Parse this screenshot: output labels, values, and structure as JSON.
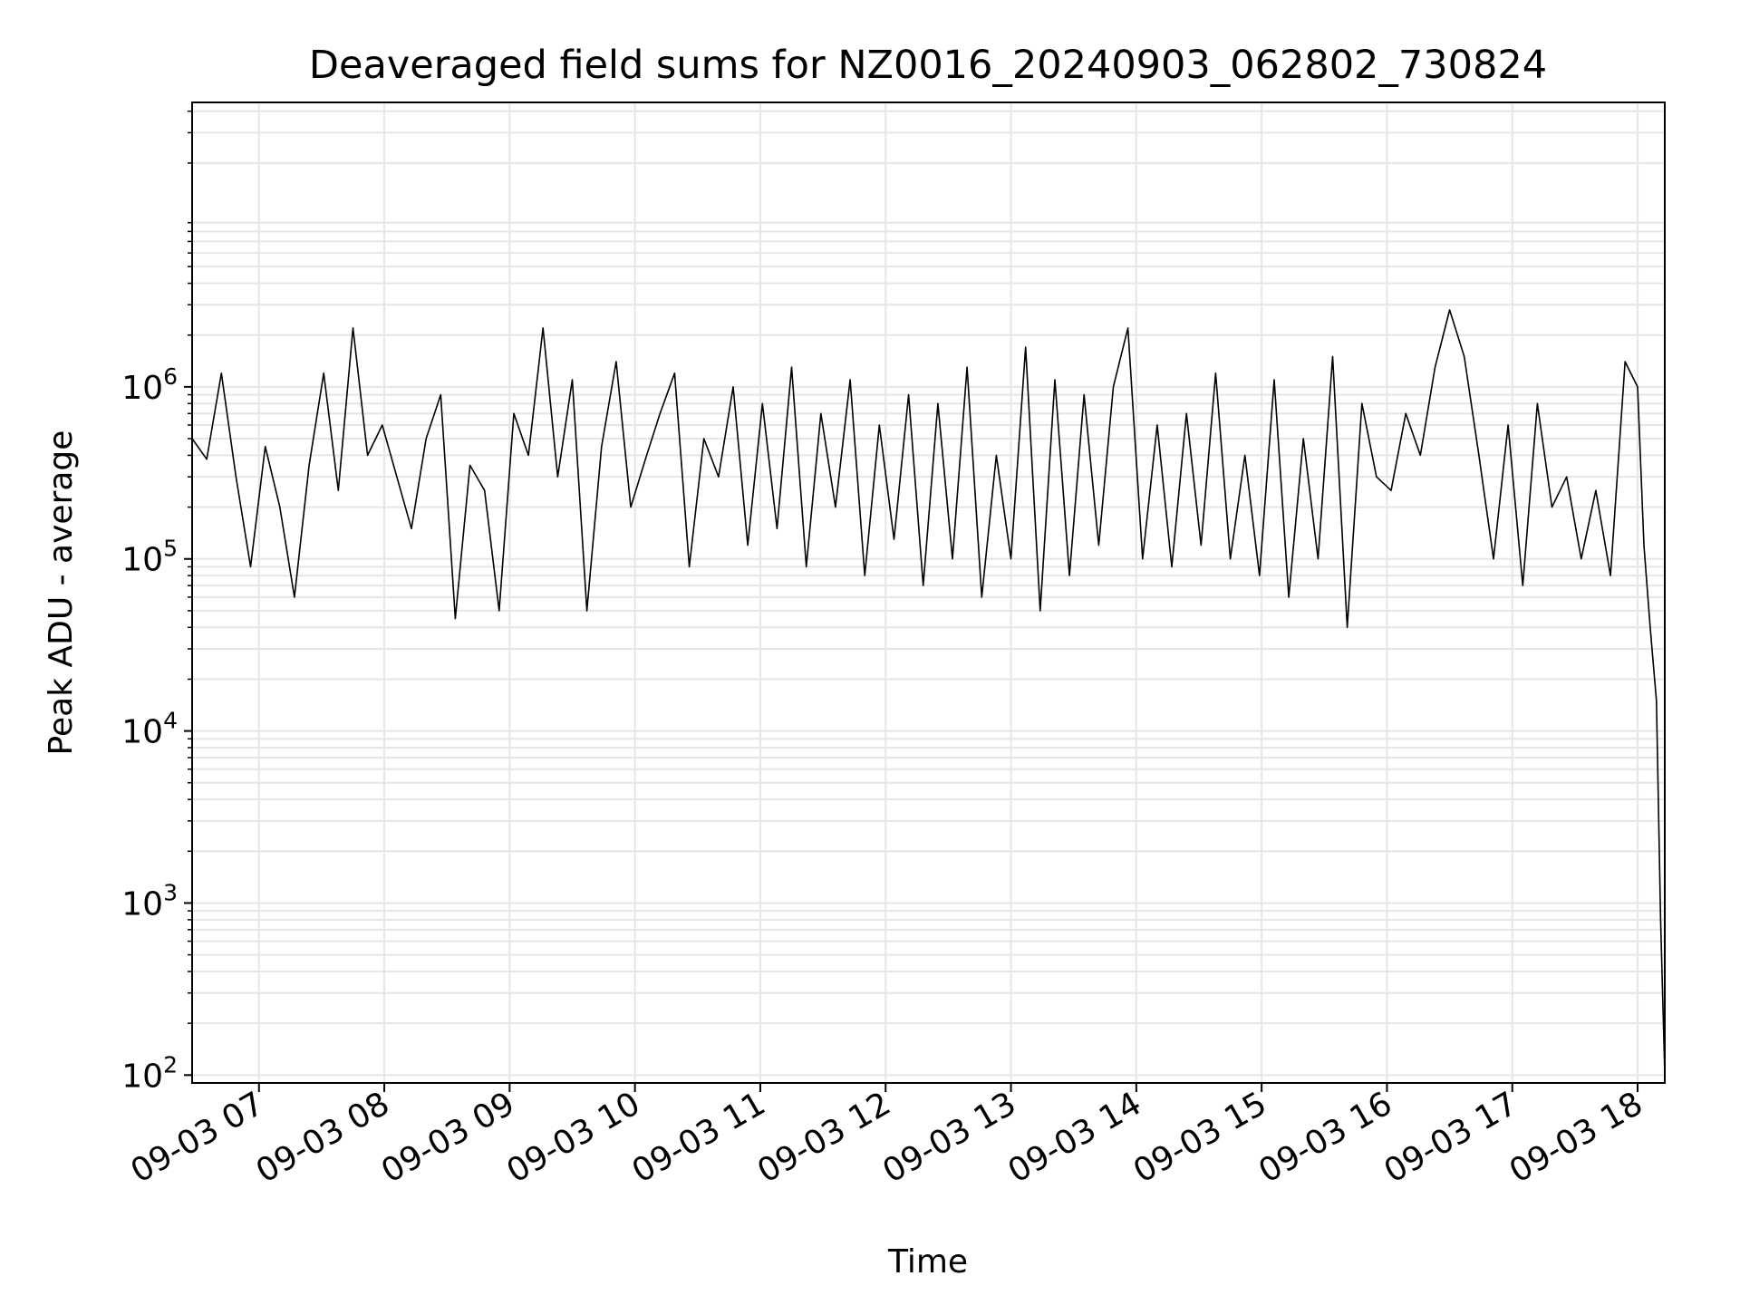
{
  "chart_data": {
    "type": "line",
    "title": "Deaveraged field sums for NZ0016_20240903_062802_730824",
    "xlabel": "Time",
    "ylabel": "Peak ADU - average",
    "y_scale": "log",
    "ylim": [
      90,
      45000000
    ],
    "xlim": [
      "2024-09-03 06:28",
      "2024-09-03 18:13"
    ],
    "x_ticks": [
      "2024-09-03 07:00",
      "2024-09-03 08:00",
      "2024-09-03 09:00",
      "2024-09-03 10:00",
      "2024-09-03 11:00",
      "2024-09-03 12:00",
      "2024-09-03 13:00",
      "2024-09-03 14:00",
      "2024-09-03 15:00",
      "2024-09-03 16:00",
      "2024-09-03 17:00",
      "2024-09-03 18:00"
    ],
    "x_tick_labels": [
      "09-03 07",
      "09-03 08",
      "09-03 09",
      "09-03 10",
      "09-03 11",
      "09-03 12",
      "09-03 13",
      "09-03 14",
      "09-03 15",
      "09-03 16",
      "09-03 17",
      "09-03 18"
    ],
    "y_tick_values": [
      100,
      1000,
      10000,
      100000,
      1000000
    ],
    "y_tick_labels": [
      {
        "base": "10",
        "exp": "2"
      },
      {
        "base": "10",
        "exp": "3"
      },
      {
        "base": "10",
        "exp": "4"
      },
      {
        "base": "10",
        "exp": "5"
      },
      {
        "base": "10",
        "exp": "6"
      }
    ],
    "grid": true,
    "series": [
      {
        "color": "#000000",
        "x": [
          "2024-09-03 06:28",
          "2024-09-03 06:35",
          "2024-09-03 06:42",
          "2024-09-03 06:49",
          "2024-09-03 06:56",
          "2024-09-03 07:03",
          "2024-09-03 07:10",
          "2024-09-03 07:17",
          "2024-09-03 07:24",
          "2024-09-03 07:31",
          "2024-09-03 07:38",
          "2024-09-03 07:45",
          "2024-09-03 07:52",
          "2024-09-03 07:59",
          "2024-09-03 08:06",
          "2024-09-03 08:13",
          "2024-09-03 08:20",
          "2024-09-03 08:27",
          "2024-09-03 08:34",
          "2024-09-03 08:41",
          "2024-09-03 08:48",
          "2024-09-03 08:55",
          "2024-09-03 09:02",
          "2024-09-03 09:09",
          "2024-09-03 09:16",
          "2024-09-03 09:23",
          "2024-09-03 09:30",
          "2024-09-03 09:37",
          "2024-09-03 09:44",
          "2024-09-03 09:51",
          "2024-09-03 09:58",
          "2024-09-03 10:05",
          "2024-09-03 10:12",
          "2024-09-03 10:19",
          "2024-09-03 10:26",
          "2024-09-03 10:33",
          "2024-09-03 10:40",
          "2024-09-03 10:47",
          "2024-09-03 10:54",
          "2024-09-03 11:01",
          "2024-09-03 11:08",
          "2024-09-03 11:15",
          "2024-09-03 11:22",
          "2024-09-03 11:29",
          "2024-09-03 11:36",
          "2024-09-03 11:43",
          "2024-09-03 11:50",
          "2024-09-03 11:57",
          "2024-09-03 12:04",
          "2024-09-03 12:11",
          "2024-09-03 12:18",
          "2024-09-03 12:25",
          "2024-09-03 12:32",
          "2024-09-03 12:39",
          "2024-09-03 12:46",
          "2024-09-03 12:53",
          "2024-09-03 13:00",
          "2024-09-03 13:07",
          "2024-09-03 13:14",
          "2024-09-03 13:21",
          "2024-09-03 13:28",
          "2024-09-03 13:35",
          "2024-09-03 13:42",
          "2024-09-03 13:49",
          "2024-09-03 13:56",
          "2024-09-03 14:03",
          "2024-09-03 14:10",
          "2024-09-03 14:17",
          "2024-09-03 14:24",
          "2024-09-03 14:31",
          "2024-09-03 14:38",
          "2024-09-03 14:45",
          "2024-09-03 14:52",
          "2024-09-03 14:59",
          "2024-09-03 15:06",
          "2024-09-03 15:13",
          "2024-09-03 15:20",
          "2024-09-03 15:27",
          "2024-09-03 15:34",
          "2024-09-03 15:41",
          "2024-09-03 15:48",
          "2024-09-03 15:55",
          "2024-09-03 16:02",
          "2024-09-03 16:09",
          "2024-09-03 16:16",
          "2024-09-03 16:23",
          "2024-09-03 16:30",
          "2024-09-03 16:37",
          "2024-09-03 16:44",
          "2024-09-03 16:51",
          "2024-09-03 16:58",
          "2024-09-03 17:05",
          "2024-09-03 17:12",
          "2024-09-03 17:19",
          "2024-09-03 17:26",
          "2024-09-03 17:33",
          "2024-09-03 17:40",
          "2024-09-03 17:47",
          "2024-09-03 17:54",
          "2024-09-03 18:00",
          "2024-09-03 18:03",
          "2024-09-03 18:06",
          "2024-09-03 18:09",
          "2024-09-03 18:11",
          "2024-09-03 18:13"
        ],
        "y": [
          500000,
          380000,
          1200000,
          300000,
          90000,
          450000,
          200000,
          60000,
          350000,
          1200000,
          250000,
          2200000,
          400000,
          600000,
          300000,
          150000,
          500000,
          900000,
          45000,
          350000,
          250000,
          50000,
          700000,
          400000,
          2200000,
          300000,
          1100000,
          50000,
          450000,
          1400000,
          200000,
          380000,
          700000,
          1200000,
          90000,
          500000,
          300000,
          1000000,
          120000,
          800000,
          150000,
          1300000,
          90000,
          700000,
          200000,
          1100000,
          80000,
          600000,
          130000,
          900000,
          70000,
          800000,
          100000,
          1300000,
          60000,
          400000,
          100000,
          1700000,
          50000,
          1100000,
          80000,
          900000,
          120000,
          1000000,
          2200000,
          100000,
          600000,
          90000,
          700000,
          120000,
          1200000,
          100000,
          400000,
          80000,
          1100000,
          60000,
          500000,
          100000,
          1500000,
          40000,
          800000,
          300000,
          250000,
          700000,
          400000,
          1300000,
          2800000,
          1500000,
          400000,
          100000,
          600000,
          70000,
          800000,
          200000,
          300000,
          100000,
          250000,
          80000,
          1400000,
          1000000,
          120000,
          40000,
          15000,
          800,
          100
        ]
      }
    ]
  }
}
